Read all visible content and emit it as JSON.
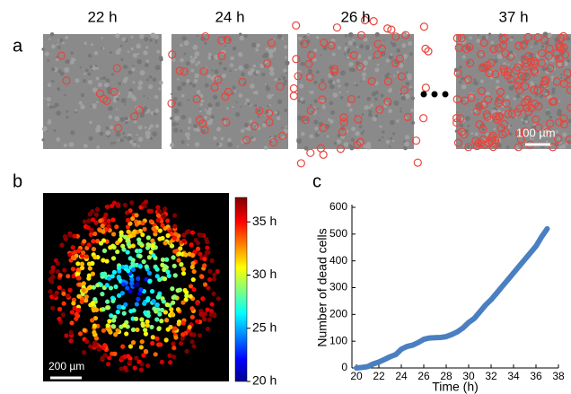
{
  "panel_a": {
    "label": "a",
    "frames": [
      "22 h",
      "24 h",
      "26 h",
      "37 h"
    ],
    "scale_bar": "100 µm"
  },
  "panel_b": {
    "label": "b",
    "scale_bar": "200 µm",
    "colorbar": {
      "lim": [
        20,
        37.3
      ],
      "ticks": [
        {
          "value": 20,
          "label": "20 h"
        },
        {
          "value": 25,
          "label": "25 h"
        },
        {
          "value": 30,
          "label": "30 h"
        },
        {
          "value": 35,
          "label": "35 h"
        }
      ]
    }
  },
  "panel_c": {
    "label": "c"
  },
  "chart_data": {
    "type": "line",
    "xlabel": "Time (h)",
    "ylabel": "Number of dead cells",
    "color": "#4a7fc1",
    "x": [
      20,
      20.5,
      21,
      21.5,
      22,
      22.5,
      23,
      23.5,
      24,
      24.5,
      25,
      25.5,
      26,
      26.5,
      27,
      27.5,
      28,
      28.5,
      29,
      29.5,
      30,
      30.5,
      31,
      31.5,
      32,
      32.5,
      33,
      33.5,
      34,
      34.5,
      35,
      35.5,
      36,
      36.5,
      37
    ],
    "values": [
      0,
      2,
      5,
      15,
      22,
      32,
      42,
      50,
      70,
      80,
      85,
      95,
      107,
      112,
      113,
      114,
      117,
      125,
      135,
      150,
      170,
      185,
      210,
      235,
      255,
      280,
      305,
      330,
      355,
      380,
      405,
      430,
      455,
      490,
      520
    ],
    "xlim": [
      19.6,
      38
    ],
    "ylim": [
      0,
      600
    ],
    "xticks": [
      20,
      22,
      24,
      26,
      28,
      30,
      32,
      34,
      36,
      38
    ],
    "yticks": [
      0,
      100,
      200,
      300,
      400,
      500,
      600
    ]
  }
}
